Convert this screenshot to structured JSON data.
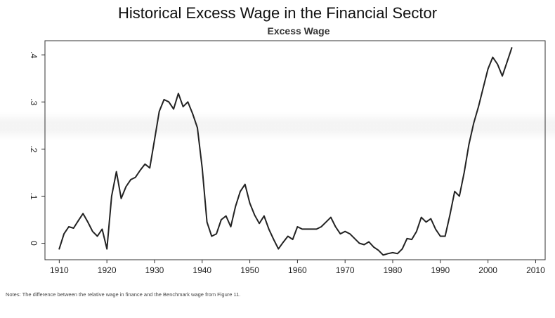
{
  "title": "Historical Excess Wage in the Financial Sector",
  "notes": "Notes: The difference between the relative wage in finance and the Benchmark wage from Figure 11.",
  "chart_data": {
    "type": "line",
    "title": "Excess Wage",
    "xlabel": "",
    "ylabel": "",
    "xlim": [
      1907,
      2012
    ],
    "ylim": [
      -0.035,
      0.43
    ],
    "xticks": [
      1910,
      1920,
      1930,
      1940,
      1950,
      1960,
      1970,
      1980,
      1990,
      2000,
      2010
    ],
    "yticks": [
      0,
      0.1,
      0.2,
      0.3,
      0.4
    ],
    "ytick_labels": [
      "0",
      ".1",
      ".2",
      ".3",
      ".4"
    ],
    "grid": false,
    "line_color": "#222222",
    "series": [
      {
        "x": [
          1910,
          1911,
          1912,
          1913,
          1914,
          1915,
          1916,
          1917,
          1918,
          1919,
          1920,
          1921,
          1922,
          1923,
          1924,
          1925,
          1926,
          1927,
          1928,
          1929,
          1930,
          1931,
          1932,
          1933,
          1934,
          1935,
          1936,
          1937,
          1938,
          1939,
          1940,
          1941,
          1942,
          1943,
          1944,
          1945,
          1946,
          1947,
          1948,
          1949,
          1950,
          1951,
          1952,
          1953,
          1954,
          1955,
          1956,
          1957,
          1958,
          1959,
          1960,
          1961,
          1962,
          1963,
          1964,
          1965,
          1966,
          1967,
          1968,
          1969,
          1970,
          1971,
          1972,
          1973,
          1974,
          1975,
          1976,
          1977,
          1978,
          1979,
          1980,
          1981,
          1982,
          1983,
          1984,
          1985,
          1986,
          1987,
          1988,
          1989,
          1990,
          1991,
          1992,
          1993,
          1994,
          1995,
          1996,
          1997,
          1998,
          1999,
          2000,
          2001,
          2002,
          2003,
          2004,
          2005
        ],
        "values": [
          -0.012,
          0.02,
          0.035,
          0.032,
          0.048,
          0.063,
          0.045,
          0.025,
          0.015,
          0.03,
          -0.012,
          0.1,
          0.152,
          0.095,
          0.12,
          0.135,
          0.14,
          0.155,
          0.168,
          0.16,
          0.22,
          0.28,
          0.305,
          0.3,
          0.285,
          0.318,
          0.29,
          0.3,
          0.275,
          0.245,
          0.16,
          0.045,
          0.015,
          0.02,
          0.05,
          0.058,
          0.035,
          0.078,
          0.11,
          0.125,
          0.085,
          0.06,
          0.042,
          0.058,
          0.03,
          0.008,
          -0.012,
          0.002,
          0.015,
          0.008,
          0.035,
          0.03,
          0.03,
          0.03,
          0.03,
          0.035,
          0.045,
          0.055,
          0.035,
          0.02,
          0.025,
          0.02,
          0.01,
          0.0,
          -0.003,
          0.003,
          -0.008,
          -0.015,
          -0.025,
          -0.022,
          -0.02,
          -0.022,
          -0.012,
          0.01,
          0.008,
          0.025,
          0.055,
          0.045,
          0.052,
          0.03,
          0.015,
          0.015,
          0.06,
          0.11,
          0.1,
          0.15,
          0.21,
          0.255,
          0.29,
          0.33,
          0.37,
          0.395,
          0.38,
          0.355,
          0.385,
          0.415
        ]
      }
    ]
  }
}
